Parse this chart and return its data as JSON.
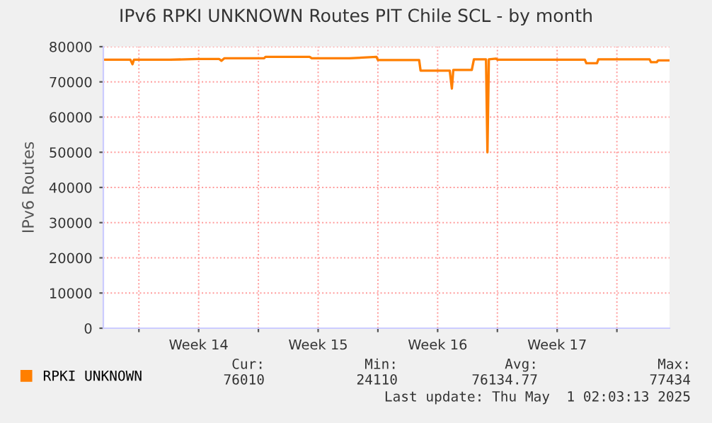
{
  "chart_data": {
    "type": "line",
    "title": "IPv6 RPKI UNKNOWN Routes PIT Chile SCL - by month",
    "ylabel": "IPv6 Routes",
    "x": [
      "2025-03-28T22:00",
      "2025-03-30T12:00",
      "2025-03-30T15:00",
      "2025-03-30T17:00",
      "2025-04-01T20:00",
      "2025-04-03T10:00",
      "2025-04-04T17:00",
      "2025-04-04T20:00",
      "2025-04-05T00:00",
      "2025-04-07T08:00",
      "2025-04-07T10:00",
      "2025-04-10T00:00",
      "2025-04-10T03:00",
      "2025-04-12T08:00",
      "2025-04-13T22:00",
      "2025-04-14T00:00",
      "2025-04-16T10:00",
      "2025-04-16T12:00",
      "2025-04-18T05:00",
      "2025-04-18T08:00",
      "2025-04-18T10:00",
      "2025-04-19T12:00",
      "2025-04-19T15:00",
      "2025-04-19T17:00",
      "2025-04-20T08:00",
      "2025-04-20T10:00",
      "2025-04-20T12:00",
      "2025-04-20T22:00",
      "2025-04-21T00:00",
      "2025-04-21T22:00",
      "2025-04-26T03:00",
      "2025-04-26T05:00",
      "2025-04-26T20:00",
      "2025-04-26T22:00",
      "2025-04-29T22:00",
      "2025-04-30T00:00",
      "2025-04-30T08:00",
      "2025-04-30T10:00",
      "2025-05-01T01:00"
    ],
    "series": [
      {
        "name": "RPKI UNKNOWN",
        "color": "#ff7f00",
        "values": [
          76300,
          76300,
          75000,
          76300,
          76300,
          76500,
          76500,
          76000,
          76700,
          76700,
          77100,
          77100,
          76700,
          76700,
          77100,
          76200,
          76200,
          73200,
          73200,
          68100,
          73400,
          73400,
          76400,
          76400,
          76400,
          50000,
          76400,
          76600,
          76300,
          76300,
          76300,
          75300,
          75300,
          76400,
          76400,
          75600,
          75600,
          76100,
          76100
        ]
      }
    ],
    "xlim": [
      "2025-03-28T22:00",
      "2025-05-01T02:00"
    ],
    "ylim": [
      0,
      80000
    ],
    "xticks": [
      {
        "value": "2025-03-31",
        "label": null
      },
      {
        "value": "2025-04-03T12:00",
        "label": "Week 14"
      },
      {
        "value": "2025-04-07",
        "label": null
      },
      {
        "value": "2025-04-10T12:00",
        "label": "Week 15"
      },
      {
        "value": "2025-04-14",
        "label": null
      },
      {
        "value": "2025-04-17T12:00",
        "label": "Week 16"
      },
      {
        "value": "2025-04-21",
        "label": null
      },
      {
        "value": "2025-04-24T12:00",
        "label": "Week 17"
      },
      {
        "value": "2025-04-28",
        "label": null
      }
    ],
    "yticks": [
      0,
      10000,
      20000,
      30000,
      40000,
      50000,
      60000,
      70000,
      80000
    ],
    "grid": true,
    "legend": "bottom",
    "marker": "none",
    "line_style": "solid",
    "annotations": [
      "Cur:",
      "Min:",
      "Avg:",
      "Max:",
      "76010",
      "24110",
      "76134.77",
      "77434",
      "Last update: Thu May  1 02:03:13 2025"
    ]
  }
}
